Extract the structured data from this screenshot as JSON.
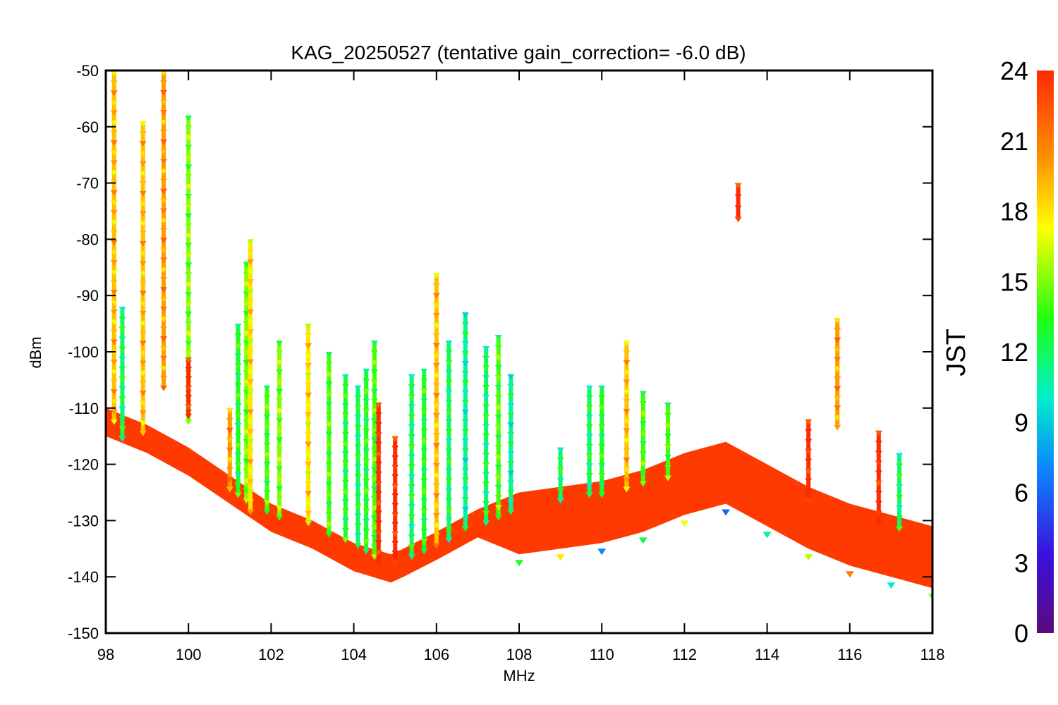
{
  "chart_data": {
    "type": "scatter",
    "title": "KAG_20250527 (tentative gain_correction= -6.0 dB)",
    "xlabel": "MHz",
    "ylabel": "dBm",
    "xlim": [
      98,
      118
    ],
    "ylim": [
      -150,
      -50
    ],
    "x_ticks": [
      "98",
      "100",
      "102",
      "104",
      "106",
      "108",
      "110",
      "112",
      "114",
      "116",
      "118"
    ],
    "y_ticks": [
      "-50",
      "-60",
      "-70",
      "-80",
      "-90",
      "-100",
      "-110",
      "-120",
      "-130",
      "-140",
      "-150"
    ],
    "colorbar": {
      "label": "JST",
      "range": [
        0,
        24
      ],
      "ticks": [
        "24",
        "21",
        "18",
        "15",
        "12",
        "9",
        "6",
        "3",
        "0"
      ],
      "colormap": "rainbow"
    },
    "grid": false,
    "marker": "inverted-triangle",
    "noise_floor_series": [
      {
        "x": 98.0,
        "y": -112
      },
      {
        "x": 99.0,
        "y": -115
      },
      {
        "x": 100.0,
        "y": -119
      },
      {
        "x": 101.0,
        "y": -124
      },
      {
        "x": 102.0,
        "y": -129
      },
      {
        "x": 103.0,
        "y": -132
      },
      {
        "x": 104.0,
        "y": -136
      },
      {
        "x": 104.9,
        "y": -138
      },
      {
        "x": 105.2,
        "y": -137
      },
      {
        "x": 106.0,
        "y": -134
      },
      {
        "x": 107.0,
        "y": -130
      },
      {
        "x": 108.0,
        "y": -127
      },
      {
        "x": 109.0,
        "y": -126
      },
      {
        "x": 110.0,
        "y": -125
      },
      {
        "x": 111.0,
        "y": -123
      },
      {
        "x": 112.0,
        "y": -120
      },
      {
        "x": 113.0,
        "y": -118
      },
      {
        "x": 114.0,
        "y": -122
      },
      {
        "x": 115.0,
        "y": -126
      },
      {
        "x": 116.0,
        "y": -129
      },
      {
        "x": 117.0,
        "y": -131
      },
      {
        "x": 118.0,
        "y": -133
      }
    ],
    "signal_lines": [
      {
        "x": 98.2,
        "top": -50,
        "bottom": -112,
        "jst": 19
      },
      {
        "x": 98.4,
        "top": -92,
        "bottom": -115,
        "jst": 12
      },
      {
        "x": 98.9,
        "top": -59,
        "bottom": -114,
        "jst": 19
      },
      {
        "x": 99.4,
        "top": -50,
        "bottom": -106,
        "jst": 20
      },
      {
        "x": 100.0,
        "top": -58,
        "bottom": -112,
        "jst": 15
      },
      {
        "x": 100.0,
        "top": -101,
        "bottom": -111,
        "jst": 24
      },
      {
        "x": 101.0,
        "top": -110,
        "bottom": -124,
        "jst": 20
      },
      {
        "x": 101.2,
        "top": -95,
        "bottom": -125,
        "jst": 13
      },
      {
        "x": 101.4,
        "top": -84,
        "bottom": -126,
        "jst": 15
      },
      {
        "x": 101.5,
        "top": -80,
        "bottom": -128,
        "jst": 18
      },
      {
        "x": 101.9,
        "top": -106,
        "bottom": -128,
        "jst": 14
      },
      {
        "x": 102.2,
        "top": -98,
        "bottom": -129,
        "jst": 15
      },
      {
        "x": 102.9,
        "top": -95,
        "bottom": -130,
        "jst": 18
      },
      {
        "x": 103.4,
        "top": -100,
        "bottom": -132,
        "jst": 14
      },
      {
        "x": 103.8,
        "top": -104,
        "bottom": -133,
        "jst": 13
      },
      {
        "x": 104.1,
        "top": -106,
        "bottom": -134,
        "jst": 12
      },
      {
        "x": 104.3,
        "top": -103,
        "bottom": -135,
        "jst": 13
      },
      {
        "x": 104.5,
        "top": -98,
        "bottom": -136,
        "jst": 14
      },
      {
        "x": 104.6,
        "top": -109,
        "bottom": -137,
        "jst": 24
      },
      {
        "x": 105.0,
        "top": -115,
        "bottom": -137,
        "jst": 24
      },
      {
        "x": 105.4,
        "top": -104,
        "bottom": -136,
        "jst": 12
      },
      {
        "x": 105.7,
        "top": -103,
        "bottom": -135,
        "jst": 13
      },
      {
        "x": 106.0,
        "top": -86,
        "bottom": -134,
        "jst": 19
      },
      {
        "x": 106.3,
        "top": -98,
        "bottom": -133,
        "jst": 12
      },
      {
        "x": 106.7,
        "top": -93,
        "bottom": -131,
        "jst": 11
      },
      {
        "x": 107.2,
        "top": -99,
        "bottom": -130,
        "jst": 12
      },
      {
        "x": 107.5,
        "top": -97,
        "bottom": -129,
        "jst": 14
      },
      {
        "x": 107.8,
        "top": -104,
        "bottom": -128,
        "jst": 11
      },
      {
        "x": 109.0,
        "top": -117,
        "bottom": -126,
        "jst": 12
      },
      {
        "x": 109.7,
        "top": -106,
        "bottom": -125,
        "jst": 12
      },
      {
        "x": 110.0,
        "top": -106,
        "bottom": -125,
        "jst": 13
      },
      {
        "x": 110.6,
        "top": -98,
        "bottom": -124,
        "jst": 19
      },
      {
        "x": 111.0,
        "top": -107,
        "bottom": -123,
        "jst": 14
      },
      {
        "x": 111.6,
        "top": -109,
        "bottom": -122,
        "jst": 14
      },
      {
        "x": 113.3,
        "top": -70,
        "bottom": -76,
        "jst": 24
      },
      {
        "x": 115.0,
        "top": -112,
        "bottom": -126,
        "jst": 24
      },
      {
        "x": 115.7,
        "top": -94,
        "bottom": -113,
        "jst": 20
      },
      {
        "x": 116.7,
        "top": -114,
        "bottom": -130,
        "jst": 24
      },
      {
        "x": 117.2,
        "top": -118,
        "bottom": -131,
        "jst": 12
      }
    ]
  }
}
